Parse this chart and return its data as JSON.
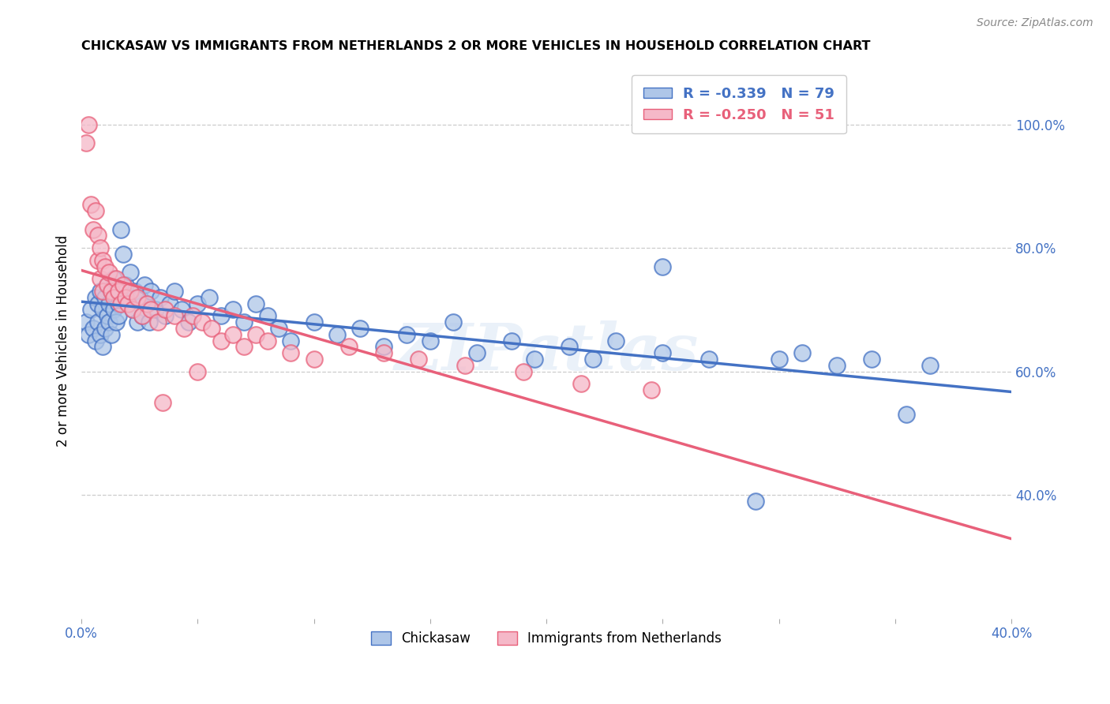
{
  "title": "CHICKASAW VS IMMIGRANTS FROM NETHERLANDS 2 OR MORE VEHICLES IN HOUSEHOLD CORRELATION CHART",
  "source": "Source: ZipAtlas.com",
  "ylabel": "2 or more Vehicles in Household",
  "watermark": "ZIPatlas",
  "xlim": [
    0.0,
    0.4
  ],
  "ylim": [
    0.2,
    1.1
  ],
  "yticks_right": [
    0.4,
    0.6,
    0.8,
    1.0
  ],
  "ytick_labels_right": [
    "40.0%",
    "60.0%",
    "80.0%",
    "100.0%"
  ],
  "blue_color": "#aec6e8",
  "pink_color": "#f5b8c8",
  "blue_line_color": "#4472c4",
  "pink_line_color": "#e8607a",
  "legend_blue_R": "R = -0.339",
  "legend_blue_N": "N = 79",
  "legend_pink_R": "R = -0.250",
  "legend_pink_N": "N = 51",
  "chickasaw_x": [
    0.002,
    0.003,
    0.004,
    0.005,
    0.006,
    0.006,
    0.007,
    0.007,
    0.008,
    0.008,
    0.009,
    0.009,
    0.01,
    0.01,
    0.011,
    0.011,
    0.012,
    0.012,
    0.013,
    0.013,
    0.014,
    0.014,
    0.015,
    0.015,
    0.016,
    0.016,
    0.017,
    0.018,
    0.019,
    0.02,
    0.021,
    0.022,
    0.023,
    0.024,
    0.025,
    0.026,
    0.027,
    0.028,
    0.029,
    0.03,
    0.032,
    0.034,
    0.036,
    0.038,
    0.04,
    0.043,
    0.046,
    0.05,
    0.055,
    0.06,
    0.065,
    0.07,
    0.075,
    0.08,
    0.085,
    0.09,
    0.1,
    0.11,
    0.12,
    0.13,
    0.14,
    0.15,
    0.16,
    0.17,
    0.185,
    0.195,
    0.21,
    0.22,
    0.23,
    0.25,
    0.27,
    0.3,
    0.31,
    0.325,
    0.34,
    0.355,
    0.365,
    0.25,
    0.29
  ],
  "chickasaw_y": [
    0.68,
    0.66,
    0.7,
    0.67,
    0.72,
    0.65,
    0.71,
    0.68,
    0.73,
    0.66,
    0.7,
    0.64,
    0.72,
    0.67,
    0.69,
    0.74,
    0.71,
    0.68,
    0.73,
    0.66,
    0.7,
    0.75,
    0.72,
    0.68,
    0.71,
    0.69,
    0.83,
    0.79,
    0.74,
    0.72,
    0.76,
    0.7,
    0.73,
    0.68,
    0.72,
    0.69,
    0.74,
    0.71,
    0.68,
    0.73,
    0.7,
    0.72,
    0.69,
    0.71,
    0.73,
    0.7,
    0.68,
    0.71,
    0.72,
    0.69,
    0.7,
    0.68,
    0.71,
    0.69,
    0.67,
    0.65,
    0.68,
    0.66,
    0.67,
    0.64,
    0.66,
    0.65,
    0.68,
    0.63,
    0.65,
    0.62,
    0.64,
    0.62,
    0.65,
    0.63,
    0.62,
    0.62,
    0.63,
    0.61,
    0.62,
    0.53,
    0.61,
    0.77,
    0.39
  ],
  "netherlands_x": [
    0.002,
    0.003,
    0.004,
    0.005,
    0.006,
    0.007,
    0.007,
    0.008,
    0.008,
    0.009,
    0.009,
    0.01,
    0.011,
    0.012,
    0.013,
    0.014,
    0.015,
    0.016,
    0.017,
    0.018,
    0.019,
    0.02,
    0.021,
    0.022,
    0.024,
    0.026,
    0.028,
    0.03,
    0.033,
    0.036,
    0.04,
    0.044,
    0.048,
    0.052,
    0.056,
    0.06,
    0.065,
    0.07,
    0.075,
    0.08,
    0.09,
    0.1,
    0.115,
    0.13,
    0.145,
    0.165,
    0.19,
    0.215,
    0.245,
    0.05,
    0.035
  ],
  "netherlands_y": [
    0.97,
    1.0,
    0.87,
    0.83,
    0.86,
    0.82,
    0.78,
    0.8,
    0.75,
    0.78,
    0.73,
    0.77,
    0.74,
    0.76,
    0.73,
    0.72,
    0.75,
    0.73,
    0.71,
    0.74,
    0.72,
    0.71,
    0.73,
    0.7,
    0.72,
    0.69,
    0.71,
    0.7,
    0.68,
    0.7,
    0.69,
    0.67,
    0.69,
    0.68,
    0.67,
    0.65,
    0.66,
    0.64,
    0.66,
    0.65,
    0.63,
    0.62,
    0.64,
    0.63,
    0.62,
    0.61,
    0.6,
    0.58,
    0.57,
    0.6,
    0.55
  ]
}
